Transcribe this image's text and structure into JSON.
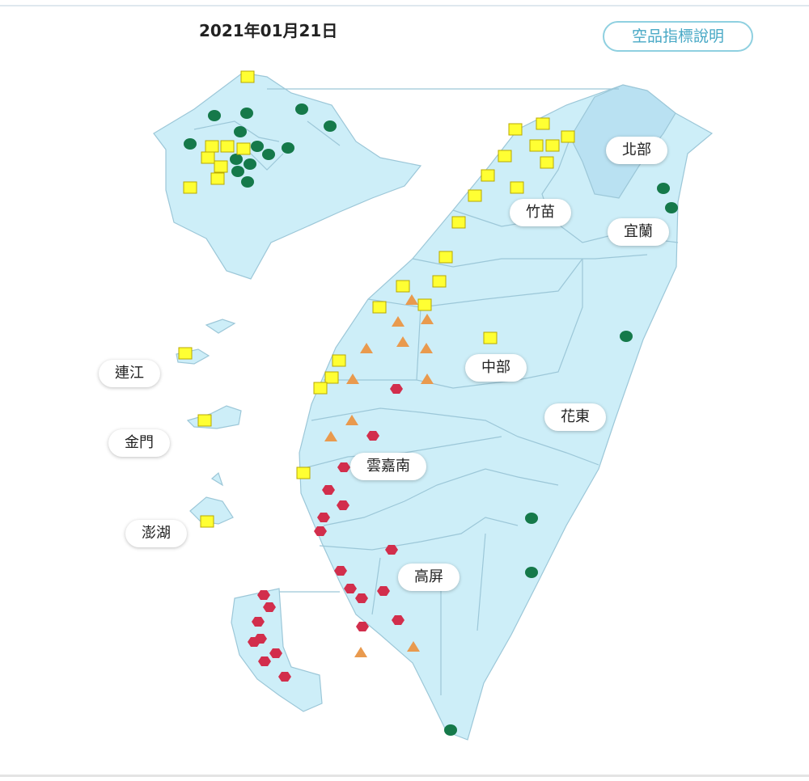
{
  "header": {
    "date": "2021年01月21日",
    "button": "空品指標說明"
  },
  "regions": [
    "北部",
    "竹苗",
    "宜蘭",
    "連江",
    "中部",
    "花東",
    "金門",
    "雲嘉南",
    "澎湖",
    "高屏"
  ]
}
